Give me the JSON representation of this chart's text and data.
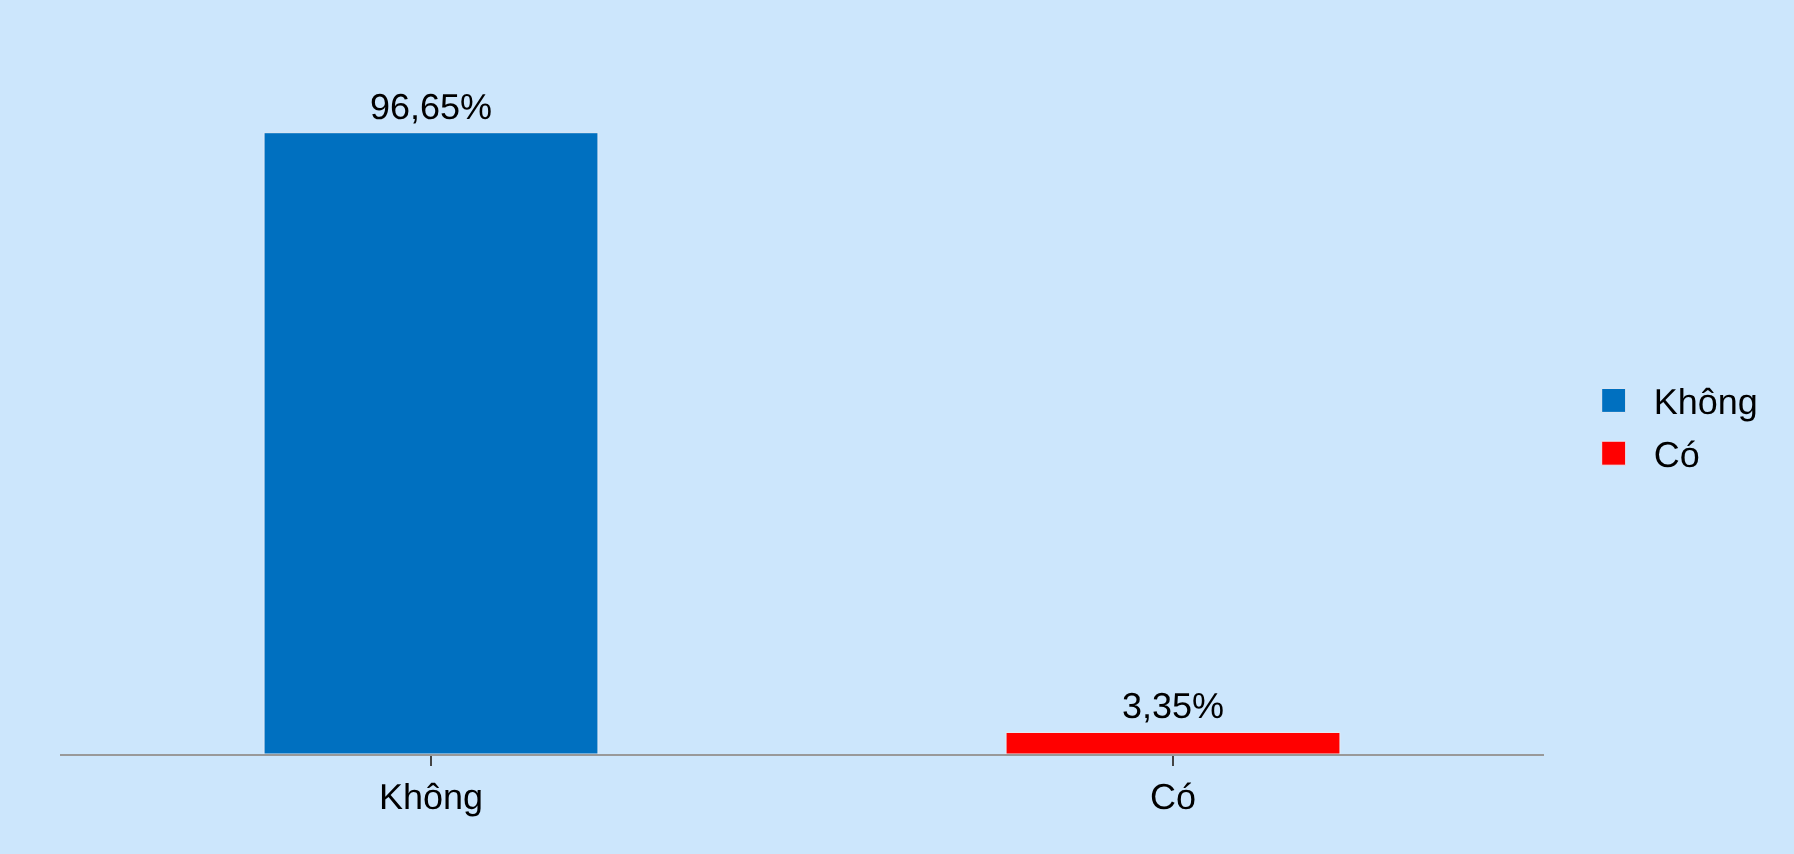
{
  "chart_data": {
    "type": "bar",
    "categories": [
      "Không",
      "Có"
    ],
    "series": [
      {
        "name": "Không",
        "color": "#0070c0",
        "values": [
          96.65,
          null
        ],
        "value_labels": [
          "96,65%",
          null
        ]
      },
      {
        "name": "Có",
        "color": "#ff0000",
        "values": [
          null,
          3.35
        ],
        "value_labels": [
          null,
          "3,35%"
        ]
      }
    ],
    "legend": "right"
  }
}
